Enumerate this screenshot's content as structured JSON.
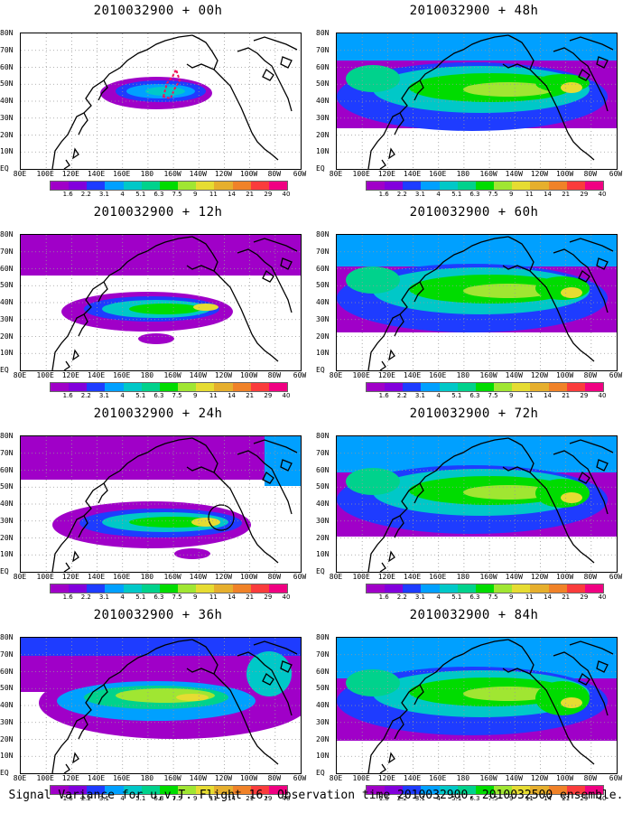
{
  "panels": [
    {
      "title": "2010032900 + 00h",
      "level": 0
    },
    {
      "title": "2010032900 + 48h",
      "level": 4
    },
    {
      "title": "2010032900 + 12h",
      "level": 1
    },
    {
      "title": "2010032900 + 60h",
      "level": 5
    },
    {
      "title": "2010032900 + 24h",
      "level": 2
    },
    {
      "title": "2010032900 + 72h",
      "level": 6
    },
    {
      "title": "2010032900 + 36h",
      "level": 3
    },
    {
      "title": "2010032900 + 84h",
      "level": 7
    }
  ],
  "y_labels": [
    "80N",
    "70N",
    "60N",
    "50N",
    "40N",
    "30N",
    "20N",
    "10N",
    "EQ"
  ],
  "x_labels": [
    "80E",
    "100E",
    "120E",
    "140E",
    "160E",
    "180",
    "160W",
    "140W",
    "120W",
    "100W",
    "80W",
    "60W"
  ],
  "colorbar": {
    "colors": [
      "#a000c8",
      "#8200dc",
      "#1e3cff",
      "#00a0ff",
      "#00c8c8",
      "#00d28c",
      "#00dc00",
      "#a0e632",
      "#e6dc32",
      "#e6af2d",
      "#f08228",
      "#fa3c3c",
      "#f00082"
    ],
    "labels": [
      "1.6",
      "2.2",
      "3.1",
      "4",
      "5.1",
      "6.3",
      "7.5",
      "9",
      "11",
      "14",
      "21",
      "29",
      "40"
    ]
  },
  "caption": "Signal Variance for u,v,T. Flight 16. Observation time 2010032900. 2010032500 ensemble."
}
